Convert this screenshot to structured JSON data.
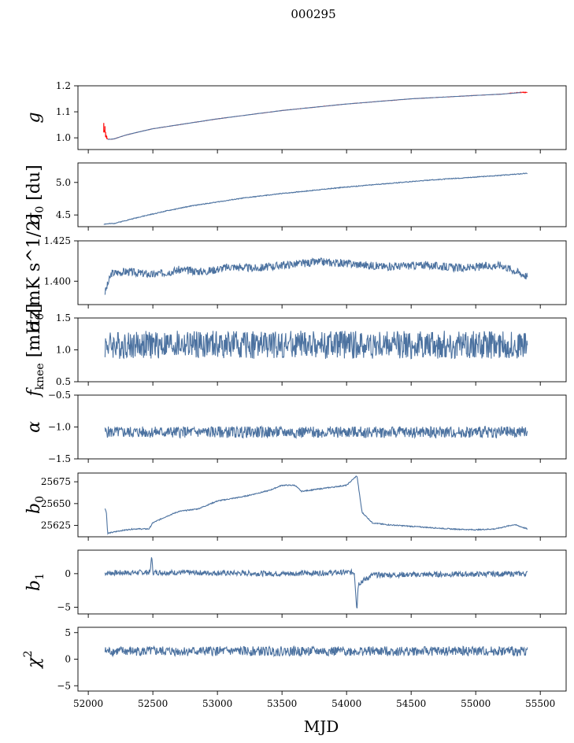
{
  "figure": {
    "title": "000295"
  },
  "chart_data": [
    {
      "type": "line",
      "id": "g",
      "ylabel_main": "g",
      "ylabel_sub": "",
      "ylabel_unit": "",
      "ylim": [
        0.955,
        1.2
      ],
      "yticks": [
        1.0,
        1.1,
        1.2
      ],
      "ytick_labels": [
        "1.0",
        "1.1",
        "1.2"
      ],
      "series": [
        {
          "color": "#ff0000",
          "kind": "band",
          "x": [
            52120,
            52130,
            52140,
            52150,
            52170,
            52200,
            52300,
            52500,
            53000,
            53500,
            54000,
            54500,
            55000,
            55200,
            55350,
            55400
          ],
          "y": [
            1.03,
            1.025,
            1.005,
            0.995,
            0.994,
            0.996,
            1.012,
            1.035,
            1.073,
            1.105,
            1.13,
            1.15,
            1.163,
            1.168,
            1.175,
            1.174
          ],
          "spread": [
            0.03,
            0.025,
            0.008,
            0.003,
            0.002,
            0.002,
            0.002,
            0.002,
            0.002,
            0.002,
            0.002,
            0.002,
            0.002,
            0.002,
            0.003,
            0.003
          ]
        },
        {
          "color": "#4c72a0",
          "kind": "line",
          "x": [
            52150,
            52200,
            52300,
            52500,
            53000,
            53500,
            54000,
            54500,
            55000,
            55200,
            55350
          ],
          "y": [
            0.994,
            0.996,
            1.012,
            1.035,
            1.073,
            1.105,
            1.13,
            1.15,
            1.163,
            1.168,
            1.174
          ]
        }
      ]
    },
    {
      "type": "line",
      "id": "sigma0_du",
      "ylabel_main": "σ",
      "ylabel_sub": "0",
      "ylabel_unit": " [du]",
      "ylim": [
        4.32,
        5.3
      ],
      "yticks": [
        4.5,
        5.0
      ],
      "ytick_labels": [
        "4.5",
        "5.0"
      ],
      "series": [
        {
          "color": "#4c72a0",
          "kind": "line",
          "x": [
            52120,
            52200,
            52400,
            52600,
            52800,
            53000,
            53200,
            53500,
            53800,
            54000,
            54300,
            54600,
            54900,
            55200,
            55400
          ],
          "y": [
            4.36,
            4.37,
            4.47,
            4.56,
            4.64,
            4.7,
            4.76,
            4.83,
            4.89,
            4.93,
            4.98,
            5.03,
            5.07,
            5.11,
            5.14
          ],
          "noise": 0.006,
          "seed": 2
        }
      ]
    },
    {
      "type": "line",
      "id": "sigma0_mk",
      "ylabel_main": "σ",
      "ylabel_sub": "0",
      "ylabel_unit": "[mK s^1/2]",
      "ylim": [
        1.3855,
        1.425
      ],
      "yticks": [
        1.4,
        1.425
      ],
      "ytick_labels": [
        "1.400",
        "1.425"
      ],
      "series": [
        {
          "color": "#4c72a0",
          "kind": "line",
          "x": [
            52130,
            52180,
            52300,
            52500,
            52700,
            52900,
            53100,
            53300,
            53500,
            53800,
            54000,
            54300,
            54600,
            54900,
            55200,
            55400
          ],
          "y": [
            1.393,
            1.405,
            1.406,
            1.404,
            1.407,
            1.406,
            1.409,
            1.408,
            1.41,
            1.412,
            1.411,
            1.409,
            1.41,
            1.408,
            1.41,
            1.403
          ],
          "noise": 0.0025,
          "seed": 3
        }
      ]
    },
    {
      "type": "line",
      "id": "fknee",
      "ylabel_main": "f",
      "ylabel_sub": "knee",
      "ylabel_unit": " [mHz]",
      "ylim": [
        0.5,
        1.5
      ],
      "yticks": [
        0.5,
        1.0,
        1.5
      ],
      "ytick_labels": [
        "0.5",
        "1.0",
        "1.5"
      ],
      "series": [
        {
          "color": "#4c72a0",
          "kind": "line",
          "x": [
            52130,
            55400
          ],
          "y": [
            1.08,
            1.08
          ],
          "noise": 0.22,
          "seed": 4
        }
      ]
    },
    {
      "type": "line",
      "id": "alpha",
      "ylabel_main": "α",
      "ylabel_sub": "",
      "ylabel_unit": "",
      "ylim": [
        -1.5,
        -0.5
      ],
      "yticks": [
        -1.5,
        -1.0,
        -0.5
      ],
      "ytick_labels": [
        "−1.5",
        "−1.0",
        "−0.5"
      ],
      "series": [
        {
          "color": "#4c72a0",
          "kind": "line",
          "x": [
            52130,
            55400
          ],
          "y": [
            -1.08,
            -1.08
          ],
          "noise": 0.09,
          "seed": 5
        }
      ]
    },
    {
      "type": "line",
      "id": "b0",
      "ylabel_main": "b",
      "ylabel_sub": "0",
      "ylabel_unit": "",
      "ylim": [
        25612,
        25685
      ],
      "yticks": [
        25625,
        25650,
        25675
      ],
      "ytick_labels": [
        "25625",
        "25650",
        "25675"
      ],
      "series": [
        {
          "color": "#4c72a0",
          "kind": "line",
          "x": [
            52130,
            52140,
            52150,
            52250,
            52350,
            52470,
            52500,
            52600,
            52700,
            52850,
            53000,
            53200,
            53400,
            53500,
            53600,
            53650,
            53800,
            54000,
            54080,
            54120,
            54200,
            54300,
            54500,
            54800,
            55000,
            55150,
            55300,
            55400
          ],
          "y": [
            25644,
            25641,
            25616,
            25619,
            25621,
            25621,
            25628,
            25635,
            25641,
            25644,
            25653,
            25658,
            25665,
            25671,
            25671,
            25664,
            25667,
            25671,
            25682,
            25640,
            25628,
            25626,
            25624,
            25621,
            25620,
            25621,
            25626,
            25621
          ],
          "noise": 0.6,
          "seed": 6
        }
      ]
    },
    {
      "type": "line",
      "id": "b1",
      "ylabel_main": "b",
      "ylabel_sub": "1",
      "ylabel_unit": "",
      "ylim": [
        -6,
        3.5
      ],
      "yticks": [
        -5,
        0
      ],
      "ytick_labels": [
        "−5",
        "0"
      ],
      "series": [
        {
          "color": "#4c72a0",
          "kind": "line",
          "x": [
            52130,
            52480,
            52490,
            52500,
            53500,
            54060,
            54080,
            54090,
            54200,
            55400
          ],
          "y": [
            0.1,
            0.2,
            2.8,
            0.2,
            0.0,
            0.2,
            -5.4,
            -1.5,
            -0.2,
            0.0
          ],
          "noise": 0.4,
          "seed": 7
        }
      ]
    },
    {
      "type": "line",
      "id": "chi2",
      "ylabel_main": "χ",
      "ylabel_sub": "",
      "ylabel_sup": "2",
      "ylabel_unit": "",
      "ylim": [
        -6,
        6
      ],
      "yticks": [
        -5,
        0,
        5
      ],
      "ytick_labels": [
        "−5",
        "0",
        "5"
      ],
      "series": [
        {
          "color": "#4c72a0",
          "kind": "line",
          "x": [
            52130,
            55400
          ],
          "y": [
            1.5,
            1.5
          ],
          "noise": 0.9,
          "seed": 8
        }
      ]
    }
  ],
  "x_axis": {
    "label": "MJD",
    "xlim": [
      51920,
      55700
    ],
    "ticks": [
      52000,
      52500,
      53000,
      53500,
      54000,
      54500,
      55000,
      55500
    ],
    "tick_labels": [
      "52000",
      "52500",
      "53000",
      "53500",
      "54000",
      "54500",
      "55000",
      "55500"
    ]
  }
}
